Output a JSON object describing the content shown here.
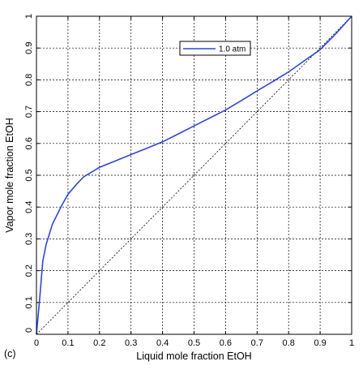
{
  "chart_data": {
    "type": "line",
    "xlabel": "Liquid mole fraction EtOH",
    "ylabel": "Vapor mole fraction EtOH",
    "panel_label": "(c)",
    "xlim": [
      0,
      1
    ],
    "ylim": [
      0,
      1
    ],
    "grid": true,
    "legend_placement": "top-center",
    "x_ticks": [
      "0",
      "0.1",
      "0.2",
      "0.3",
      "0.4",
      "0.5",
      "0.6",
      "0.7",
      "0.8",
      "0.9",
      "1"
    ],
    "y_ticks": [
      "0",
      "0.1",
      "0.2",
      "0.3",
      "0.4",
      "0.5",
      "0.6",
      "0.7",
      "0.8",
      "0.9",
      "1"
    ],
    "series": [
      {
        "name": "1.0 atm",
        "color": "#2f46d4",
        "style": "solid",
        "x": [
          0,
          0.01,
          0.02,
          0.03,
          0.05,
          0.08,
          0.1,
          0.13,
          0.15,
          0.2,
          0.25,
          0.3,
          0.35,
          0.4,
          0.45,
          0.5,
          0.55,
          0.6,
          0.65,
          0.7,
          0.75,
          0.8,
          0.85,
          0.9,
          0.95,
          1.0
        ],
        "y": [
          0,
          0.11,
          0.23,
          0.28,
          0.345,
          0.405,
          0.44,
          0.475,
          0.495,
          0.525,
          0.545,
          0.565,
          0.585,
          0.605,
          0.63,
          0.655,
          0.68,
          0.705,
          0.735,
          0.765,
          0.795,
          0.825,
          0.86,
          0.895,
          0.945,
          1.0
        ]
      },
      {
        "name": "",
        "color": "#000000",
        "style": "dashed",
        "x": [
          0,
          1
        ],
        "y": [
          0,
          1
        ]
      }
    ]
  }
}
